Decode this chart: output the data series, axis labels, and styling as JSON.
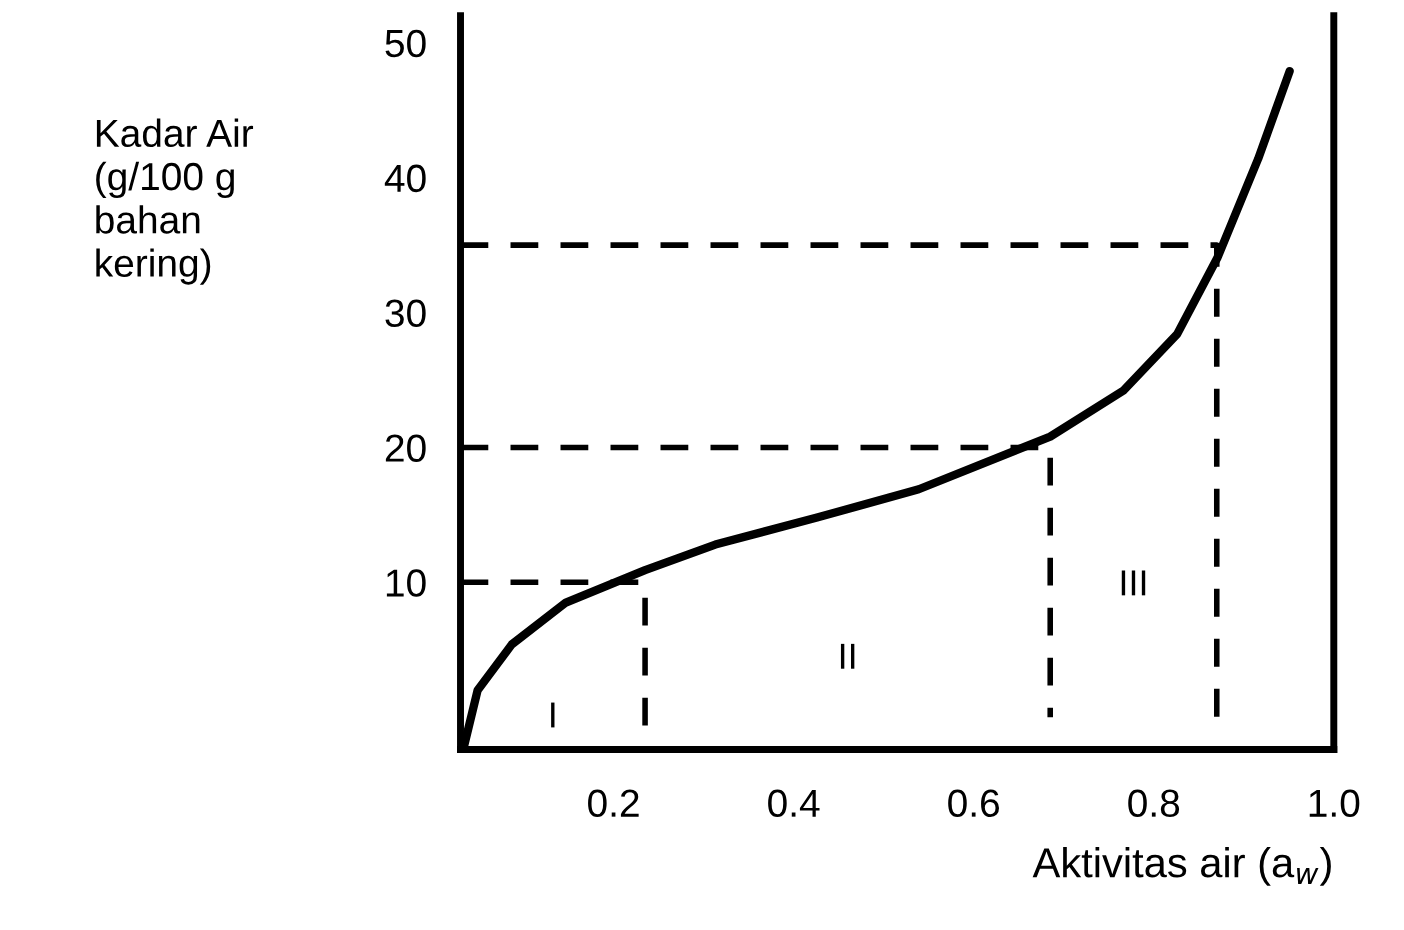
{
  "chart_data": {
    "type": "line",
    "xlabel": "Aktivitas air (a$_{w}$)",
    "ylabel": "Kadar Air\n(g/100 g\nbahan\nkering)",
    "xlim": [
      0.03,
      1.0
    ],
    "ylim": [
      -2.4,
      52
    ],
    "xticks": [
      0.2,
      0.4,
      0.6,
      0.8,
      {
        "value": 1.0,
        "label": "1.0"
      }
    ],
    "yticks": [
      10,
      20,
      30,
      40,
      50
    ],
    "grid": false,
    "legend": false,
    "marker": "none",
    "series": [
      {
        "color": "#000000",
        "line_style": "solid",
        "x": [
          0.033,
          0.049,
          0.087,
          0.147,
          0.235,
          0.313,
          0.426,
          0.539,
          0.685,
          0.766,
          0.826,
          0.871,
          0.916,
          0.951
        ],
        "values": [
          -2.4,
          2.0,
          5.4,
          8.5,
          10.9,
          12.8,
          14.8,
          16.9,
          20.8,
          24.2,
          28.4,
          34.1,
          41.4,
          47.9
        ]
      },
      {
        "color": "#000000",
        "line_style": "dashed",
        "x": [
          0.03,
          0.235,
          0.235
        ],
        "values": [
          10,
          10,
          -2.4
        ]
      },
      {
        "color": "#000000",
        "line_style": "dashed",
        "x": [
          0.03,
          0.685,
          0.685
        ],
        "values": [
          20,
          20,
          0
        ]
      },
      {
        "color": "#000000",
        "line_style": "dashed",
        "x": [
          0.03,
          0.87,
          0.87
        ],
        "values": [
          35,
          35,
          0
        ]
      }
    ],
    "annotations": [
      "I",
      "II",
      "III"
    ]
  }
}
